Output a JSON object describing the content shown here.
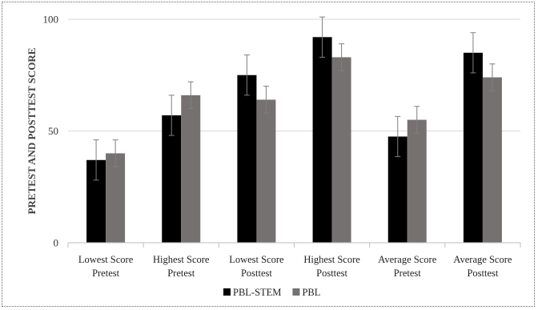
{
  "chart_data": {
    "type": "bar",
    "title": "",
    "xlabel": "",
    "ylabel": "PRETEST AND POSTTEST SCORE",
    "ylim": [
      0,
      100
    ],
    "yticks": [
      0,
      50,
      100
    ],
    "grid": true,
    "legend_position": "bottom",
    "categories": [
      [
        "Lowest Score",
        "Pretest"
      ],
      [
        "Highest Score",
        "Pretest"
      ],
      [
        "Lowest Score",
        "Posttest"
      ],
      [
        "Highest Score",
        "Posttest"
      ],
      [
        "Average Score",
        "Pretest"
      ],
      [
        "Average Score",
        "Posttest"
      ]
    ],
    "series": [
      {
        "name": "PBL-STEM",
        "color": "#000000",
        "values": [
          37,
          57,
          75,
          92,
          47.5,
          85
        ],
        "errors": [
          9,
          9,
          9,
          9,
          9,
          9
        ]
      },
      {
        "name": "PBL",
        "color": "#767171",
        "values": [
          40,
          66,
          64,
          83,
          55,
          74
        ],
        "errors": [
          6,
          6,
          6,
          6,
          6,
          6
        ]
      }
    ]
  }
}
